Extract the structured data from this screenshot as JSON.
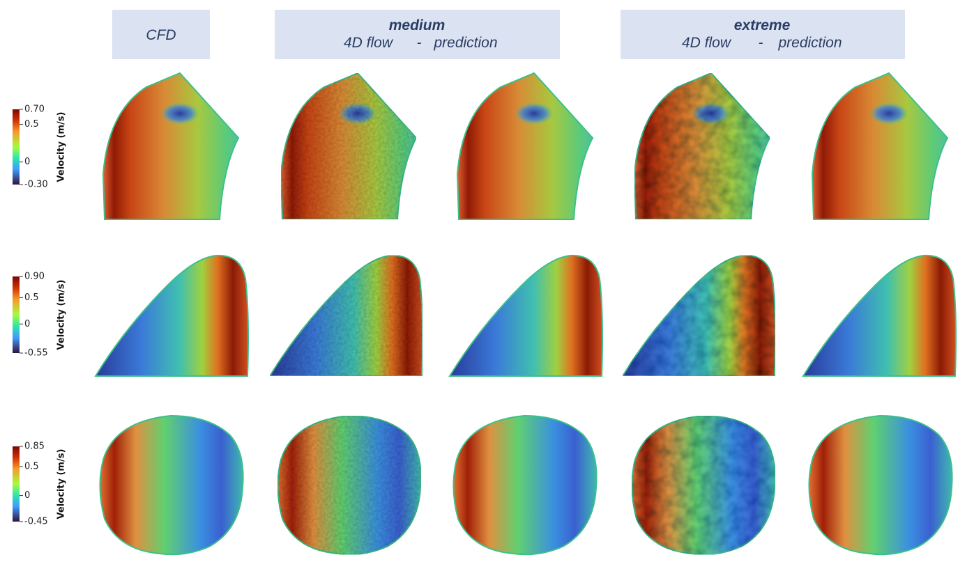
{
  "header": {
    "cfd": "CFD",
    "medium": {
      "title": "medium",
      "left": "4D flow",
      "separator": "-",
      "right": "prediction"
    },
    "extreme": {
      "title": "extreme",
      "left": "4D flow",
      "separator": "-",
      "right": "prediction"
    }
  },
  "colorbars": [
    {
      "label": "Velocity (m/s)",
      "range": [
        -0.3,
        0.7
      ],
      "ticks": [
        {
          "value": 0.7,
          "label": "0.70"
        },
        0.5,
        0,
        {
          "value": -0.3,
          "label": "-0.30"
        }
      ]
    },
    {
      "label": "Velocity (m/s)",
      "range": [
        -0.55,
        0.9
      ],
      "ticks": [
        {
          "value": 0.9,
          "label": "0.90"
        },
        0.5,
        0,
        -0.55
      ]
    },
    {
      "label": "Velocity (m/s)",
      "range": [
        -0.45,
        0.85
      ],
      "ticks": [
        0.85,
        0.5,
        0,
        -0.45
      ]
    }
  ]
}
